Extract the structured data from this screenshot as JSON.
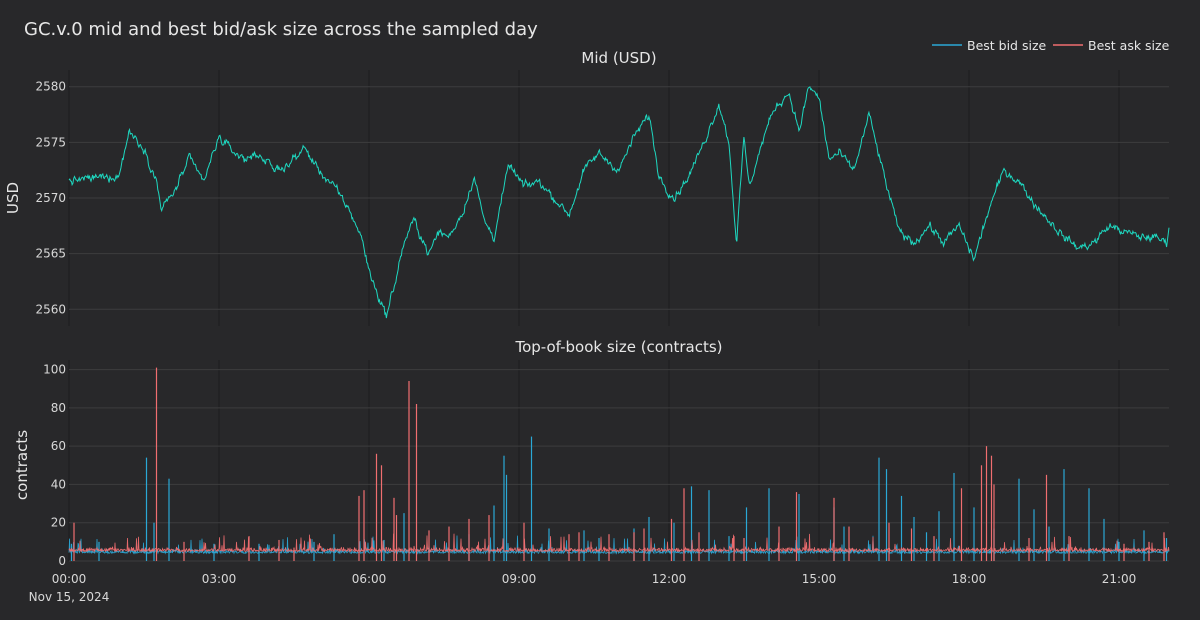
{
  "colors": {
    "background": "#28282a",
    "mid": "#1ed8c0",
    "bid": "#2aa8d6",
    "ask": "#f06e70",
    "grid": "#3c3c3e"
  },
  "chart_data": {
    "type": "line",
    "title": "GC.v.0 mid and best bid/ask size across the sampled day",
    "date_label": "Nov 15, 2024",
    "legend": {
      "placement": "top-right",
      "items": [
        {
          "name": "Best bid size",
          "color": "#2aa8d6"
        },
        {
          "name": "Best ask size",
          "color": "#f06e70"
        }
      ]
    },
    "x_ticks": [
      "00:00",
      "03:00",
      "06:00",
      "09:00",
      "12:00",
      "15:00",
      "18:00",
      "21:00"
    ],
    "xlim_hours": [
      0,
      22
    ],
    "panels": [
      {
        "subtitle": "Mid (USD)",
        "ylabel": "USD",
        "ylim": [
          2558.5,
          2581.5
        ],
        "y_ticks": [
          2560,
          2565,
          2570,
          2575,
          2580
        ],
        "series": [
          {
            "name": "Mid",
            "x_hours": [
              0,
              0.5,
              1.0,
              1.2,
              1.5,
              1.75,
              1.85,
              2.1,
              2.4,
              2.7,
              3.0,
              3.2,
              3.5,
              3.8,
              4.1,
              4.4,
              4.7,
              5.0,
              5.3,
              5.6,
              5.85,
              6.0,
              6.2,
              6.35,
              6.5,
              6.7,
              6.9,
              7.2,
              7.4,
              7.6,
              7.9,
              8.1,
              8.3,
              8.5,
              8.8,
              9.1,
              9.4,
              9.7,
              10.0,
              10.3,
              10.6,
              11.0,
              11.3,
              11.6,
              11.8,
              12.1,
              12.4,
              12.7,
              13.0,
              13.2,
              13.35,
              13.5,
              13.6,
              13.9,
              14.1,
              14.4,
              14.6,
              14.8,
              15.0,
              15.2,
              15.4,
              15.7,
              16.0,
              16.3,
              16.6,
              16.9,
              17.2,
              17.5,
              17.8,
              18.1,
              18.4,
              18.7,
              19.0,
              19.3,
              19.6,
              19.9,
              20.2,
              20.5,
              20.8,
              21.1,
              21.4,
              21.7,
              21.95,
              22.0
            ],
            "values": [
              2571.5,
              2571.8,
              2572.0,
              2576.0,
              2574.5,
              2571.5,
              2569.0,
              2570.5,
              2573.5,
              2571.5,
              2575.5,
              2574.5,
              2573.5,
              2574.0,
              2572.5,
              2573.0,
              2574.5,
              2572.5,
              2571.0,
              2569.0,
              2566.5,
              2563.5,
              2561.0,
              2559.5,
              2562.0,
              2566.0,
              2568.0,
              2565.0,
              2567.0,
              2566.5,
              2569.0,
              2572.0,
              2568.0,
              2566.5,
              2573.0,
              2571.0,
              2571.5,
              2570.0,
              2568.5,
              2572.5,
              2574.0,
              2572.5,
              2575.5,
              2577.5,
              2572.0,
              2570.0,
              2572.0,
              2575.0,
              2578.5,
              2575.0,
              2566.0,
              2575.5,
              2571.0,
              2575.5,
              2578.0,
              2579.5,
              2576.0,
              2580.0,
              2579.0,
              2573.5,
              2574.0,
              2572.5,
              2577.5,
              2572.0,
              2567.0,
              2566.0,
              2567.5,
              2566.0,
              2567.5,
              2564.5,
              2569.0,
              2572.5,
              2571.5,
              2569.5,
              2568.0,
              2566.5,
              2565.5,
              2566.0,
              2567.5,
              2567.0,
              2566.5,
              2566.5,
              2566.0,
              2567.5
            ]
          }
        ]
      },
      {
        "subtitle": "Top-of-book size (contracts)",
        "ylabel": "contracts",
        "ylim": [
          0,
          105
        ],
        "y_ticks": [
          0,
          20,
          40,
          60,
          80,
          100
        ],
        "series": [
          {
            "name": "Best bid size",
            "baseline": 4,
            "spikes": [
              [
                0.05,
                9
              ],
              [
                0.6,
                10
              ],
              [
                1.55,
                54
              ],
              [
                1.7,
                20
              ],
              [
                2.0,
                43
              ],
              [
                2.9,
                9
              ],
              [
                3.8,
                9
              ],
              [
                4.9,
                10
              ],
              [
                5.3,
                14
              ],
              [
                6.3,
                11
              ],
              [
                6.7,
                25
              ],
              [
                8.0,
                14
              ],
              [
                8.5,
                29
              ],
              [
                8.7,
                55
              ],
              [
                8.75,
                45
              ],
              [
                9.25,
                65
              ],
              [
                9.6,
                17
              ],
              [
                10.3,
                16
              ],
              [
                10.6,
                12
              ],
              [
                11.3,
                17
              ],
              [
                11.6,
                23
              ],
              [
                12.1,
                20
              ],
              [
                12.45,
                39
              ],
              [
                12.8,
                37
              ],
              [
                13.2,
                13
              ],
              [
                13.55,
                28
              ],
              [
                14.0,
                38
              ],
              [
                14.6,
                35
              ],
              [
                15.3,
                28
              ],
              [
                15.5,
                18
              ],
              [
                16.2,
                54
              ],
              [
                16.35,
                48
              ],
              [
                16.65,
                34
              ],
              [
                16.9,
                23
              ],
              [
                17.15,
                15
              ],
              [
                17.4,
                26
              ],
              [
                17.7,
                46
              ],
              [
                18.1,
                28
              ],
              [
                18.5,
                17
              ],
              [
                19.0,
                43
              ],
              [
                19.3,
                27
              ],
              [
                19.6,
                18
              ],
              [
                19.9,
                48
              ],
              [
                20.4,
                38
              ],
              [
                20.7,
                22
              ],
              [
                21.0,
                10
              ],
              [
                21.5,
                16
              ],
              [
                21.95,
                12
              ]
            ]
          },
          {
            "name": "Best ask size",
            "baseline": 5,
            "spikes": [
              [
                0.1,
                20
              ],
              [
                1.75,
                101
              ],
              [
                2.3,
                10
              ],
              [
                3.6,
                13
              ],
              [
                4.2,
                11
              ],
              [
                4.5,
                7
              ],
              [
                5.8,
                34
              ],
              [
                5.9,
                37
              ],
              [
                6.15,
                56
              ],
              [
                6.25,
                50
              ],
              [
                6.5,
                33
              ],
              [
                6.55,
                24
              ],
              [
                6.8,
                94
              ],
              [
                6.95,
                82
              ],
              [
                7.2,
                16
              ],
              [
                7.6,
                18
              ],
              [
                8.0,
                22
              ],
              [
                8.4,
                24
              ],
              [
                9.1,
                20
              ],
              [
                10.0,
                14
              ],
              [
                10.2,
                15
              ],
              [
                10.8,
                14
              ],
              [
                11.3,
                15
              ],
              [
                11.5,
                17
              ],
              [
                12.05,
                22
              ],
              [
                12.3,
                38
              ],
              [
                12.6,
                15
              ],
              [
                13.3,
                13
              ],
              [
                13.5,
                12
              ],
              [
                14.2,
                18
              ],
              [
                14.55,
                36
              ],
              [
                15.3,
                33
              ],
              [
                15.6,
                18
              ],
              [
                16.4,
                20
              ],
              [
                16.85,
                17
              ],
              [
                17.3,
                13
              ],
              [
                17.85,
                38
              ],
              [
                18.25,
                50
              ],
              [
                18.35,
                60
              ],
              [
                18.45,
                55
              ],
              [
                18.5,
                40
              ],
              [
                19.2,
                12
              ],
              [
                19.55,
                45
              ],
              [
                20.0,
                13
              ],
              [
                21.1,
                9
              ],
              [
                21.6,
                10
              ],
              [
                21.9,
                15
              ]
            ]
          }
        ]
      }
    ]
  }
}
